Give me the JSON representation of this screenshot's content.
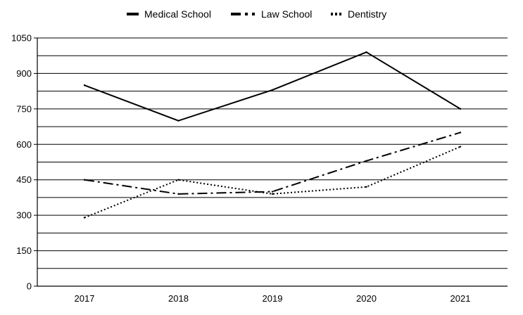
{
  "chart_data": {
    "type": "line",
    "title": "",
    "xlabel": "",
    "ylabel": "",
    "categories": [
      "2017",
      "2018",
      "2019",
      "2020",
      "2021"
    ],
    "ylim": [
      0,
      1050
    ],
    "yticks": [
      0,
      150,
      300,
      450,
      600,
      750,
      900,
      1050
    ],
    "grid": "horizontal",
    "legend_position": "top",
    "series": [
      {
        "name": "Medical School",
        "style": "solid",
        "color": "#000000",
        "values": [
          850,
          700,
          830,
          990,
          750
        ]
      },
      {
        "name": "Law School",
        "style": "dash-dot",
        "color": "#000000",
        "values": [
          450,
          390,
          400,
          530,
          650
        ]
      },
      {
        "name": "Dentistry",
        "style": "dotted",
        "color": "#000000",
        "values": [
          290,
          450,
          390,
          420,
          590
        ]
      }
    ]
  }
}
